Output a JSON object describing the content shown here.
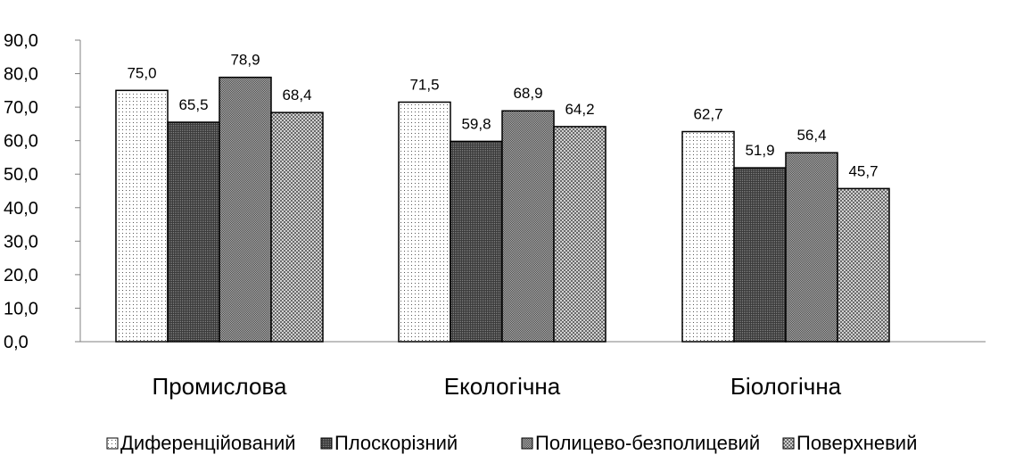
{
  "chart_data": {
    "type": "bar",
    "title": "",
    "xlabel": "",
    "ylabel": "",
    "ylim": [
      0,
      90
    ],
    "yticks": [
      "0,0",
      "10,0",
      "20,0",
      "30,0",
      "40,0",
      "50,0",
      "60,0",
      "70,0",
      "80,0",
      "90,0"
    ],
    "categories": [
      "Промислова",
      "Екологічна",
      "Біологічна"
    ],
    "series": [
      {
        "name": "Диференційований",
        "values": [
          75.0,
          71.5,
          62.7
        ],
        "labels": [
          "75,0",
          "71,5",
          "62,7"
        ]
      },
      {
        "name": "Плоскорізний",
        "values": [
          65.5,
          59.8,
          51.9
        ],
        "labels": [
          "65,5",
          "59,8",
          "51,9"
        ]
      },
      {
        "name": "Полицево-безполицевий",
        "values": [
          78.9,
          68.9,
          56.4
        ],
        "labels": [
          "78,9",
          "68,9",
          "56,4"
        ]
      },
      {
        "name": "Поверхневий",
        "values": [
          68.4,
          64.2,
          45.7
        ],
        "labels": [
          "68,4",
          "64,2",
          "45,7"
        ]
      }
    ],
    "grid": false,
    "legend_position": "bottom"
  }
}
